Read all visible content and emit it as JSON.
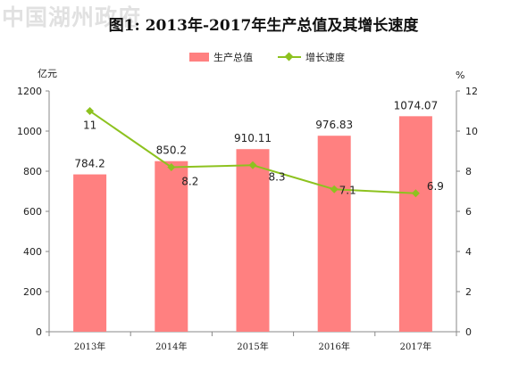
{
  "watermark": "中国湖州政府",
  "chart_data": {
    "type": "bar+line",
    "title": "图1: 2013年-2017年生产总值及其增长速度",
    "categories": [
      "2013年",
      "2014年",
      "2015年",
      "2016年",
      "2017年"
    ],
    "series": [
      {
        "name": "生产总值",
        "type": "bar",
        "axis": "left",
        "color": "#ff8080",
        "values": [
          784.2,
          850.2,
          910.11,
          976.83,
          1074.07
        ],
        "labels": [
          "784.2",
          "850.2",
          "910.11",
          "976.83",
          "1074.07"
        ]
      },
      {
        "name": "增长速度",
        "type": "line",
        "axis": "right",
        "color": "#8dc21f",
        "values": [
          11,
          8.2,
          8.3,
          7.1,
          6.9
        ],
        "labels": [
          "11",
          "8.2",
          "8.3",
          "7.1",
          "6.9"
        ]
      }
    ],
    "y_left": {
      "unit": "亿元",
      "min": 0,
      "max": 1200,
      "step": 200
    },
    "y_right": {
      "unit": "%",
      "min": 0,
      "max": 12,
      "step": 2
    },
    "grid": false,
    "legend": "top-center"
  }
}
